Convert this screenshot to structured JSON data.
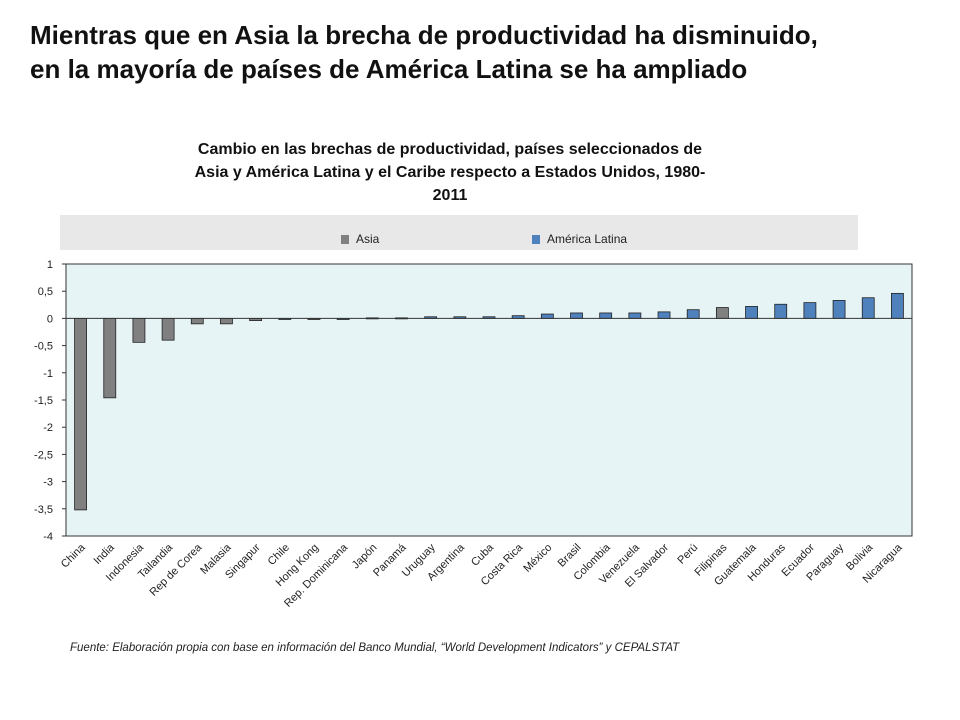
{
  "slide": {
    "title_line1": "Mientras que en Asia la brecha de productividad ha disminuido,",
    "title_line2": "en la mayoría de países de América Latina se ha ampliado"
  },
  "chart_data": {
    "type": "bar",
    "title": "Cambio en las brechas de productividad, países seleccionados de Asia y América Latina y el Caribe respecto a Estados Unidos, 1980-2011",
    "title_lines": [
      "Cambio en las brechas de productividad, países seleccionados de",
      "Asia y América Latina y el Caribe respecto a Estados Unidos, 1980-",
      "2011"
    ],
    "xlabel": "",
    "ylabel": "",
    "ylim": [
      -4,
      1
    ],
    "yticks": [
      1,
      0.5,
      0,
      -0.5,
      -1,
      -1.5,
      -2,
      -2.5,
      -3,
      -3.5,
      -4
    ],
    "ytick_labels": [
      "1",
      "0,5",
      "0",
      "-0,5",
      "-1",
      "-1,5",
      "-2",
      "-2,5",
      "-3",
      "-3,5",
      "-4"
    ],
    "grid": false,
    "legend_position": "top",
    "legend": [
      {
        "name": "Asia",
        "color": "#808080"
      },
      {
        "name": "América Latina",
        "color": "#4f81bd"
      }
    ],
    "categories": [
      "China",
      "India",
      "Indonesia",
      "Tailandia",
      "Rep de Corea",
      "Malasia",
      "Singapur",
      "Chile",
      "Hong Kong",
      "Rep. Dominicana",
      "Japón",
      "Panamá",
      "Uruguay",
      "Argentina",
      "Cuba",
      "Costa Rica",
      "México",
      "Brasil",
      "Colombia",
      "Venezuela",
      "El Salvador",
      "Perú",
      "Filipinas",
      "Guatemala",
      "Honduras",
      "Ecuador",
      "Paraguay",
      "Bolivia",
      "Nicaragua"
    ],
    "values": [
      -3.52,
      -1.46,
      -0.44,
      -0.4,
      -0.1,
      -0.1,
      -0.04,
      -0.02,
      -0.02,
      -0.02,
      0.01,
      0.01,
      0.03,
      0.03,
      0.03,
      0.05,
      0.08,
      0.1,
      0.1,
      0.1,
      0.12,
      0.16,
      0.2,
      0.22,
      0.26,
      0.29,
      0.33,
      0.38,
      0.46
    ],
    "groups": [
      "Asia",
      "Asia",
      "Asia",
      "Asia",
      "Asia",
      "Asia",
      "Asia",
      "América Latina",
      "Asia",
      "América Latina",
      "Asia",
      "América Latina",
      "América Latina",
      "América Latina",
      "América Latina",
      "América Latina",
      "América Latina",
      "América Latina",
      "América Latina",
      "América Latina",
      "América Latina",
      "América Latina",
      "Asia",
      "América Latina",
      "América Latina",
      "América Latina",
      "América Latina",
      "América Latina",
      "América Latina"
    ]
  },
  "source": {
    "text": "Fuente: Elaboración propia con base en información del Banco Mundial, “World Development Indicators” y CEPALSTAT"
  }
}
